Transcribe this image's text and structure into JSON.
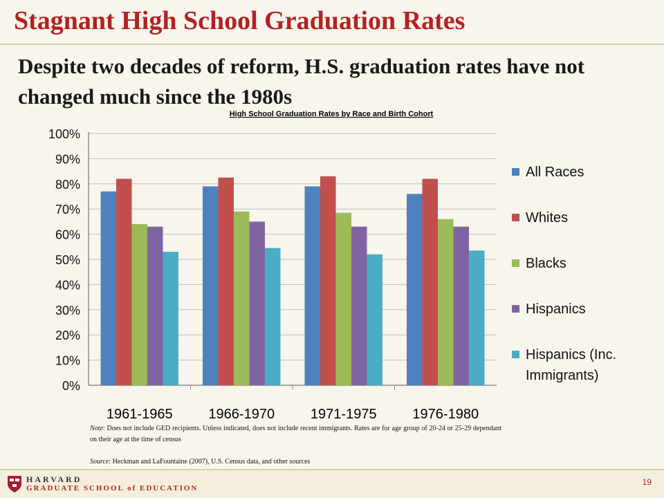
{
  "slide": {
    "title": "Stagnant High School Graduation Rates",
    "subtitle": "Despite two decades of reform, H.S. graduation rates have not changed much since the 1980s"
  },
  "chart_data": {
    "type": "bar",
    "title": "High School Graduation Rates by Race and Birth Cohort",
    "categories": [
      "1961-1965",
      "1966-1970",
      "1971-1975",
      "1976-1980"
    ],
    "series": [
      {
        "name": "All Races",
        "color": "#4f81bd",
        "values": [
          77,
          79,
          79,
          76
        ]
      },
      {
        "name": "Whites",
        "color": "#c0504d",
        "values": [
          82,
          82.5,
          83,
          82
        ]
      },
      {
        "name": "Blacks",
        "color": "#9bbb59",
        "values": [
          64,
          69,
          68.5,
          66
        ]
      },
      {
        "name": "Hispanics",
        "color": "#8064a2",
        "values": [
          63,
          65,
          63,
          63
        ]
      },
      {
        "name": "Hispanics (Inc. Immigrants)",
        "color": "#4bacc6",
        "values": [
          53,
          54.5,
          52,
          53.5
        ]
      }
    ],
    "ylim": [
      0,
      100
    ],
    "yticks": [
      "0%",
      "10%",
      "20%",
      "30%",
      "40%",
      "50%",
      "60%",
      "70%",
      "80%",
      "90%",
      "100%"
    ],
    "grid": true,
    "legend": "right"
  },
  "notes": {
    "note_label": "Note",
    "note_text": ": Does not include GED recipients. Unless indicated, does not include recent immigrants. Rates are for age group of 20-24  or 25-29 dependant on their age at the time of census",
    "source_label": "Source",
    "source_text": ": Heckman and LaFountaine (2007), U.S. Census data, and other sources"
  },
  "footer": {
    "logo_line1": "HARVARD",
    "logo_line2": "GRADUATE SCHOOL of EDUCATION",
    "page_number": "19"
  }
}
